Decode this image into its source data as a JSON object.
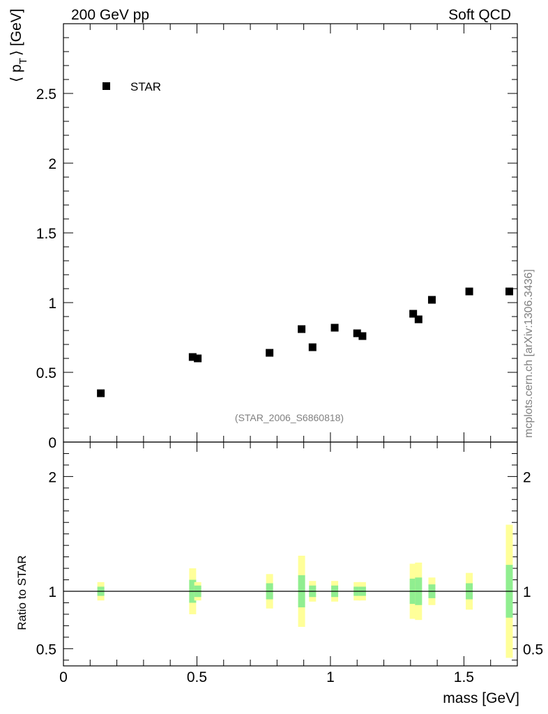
{
  "header": {
    "left": "200 GeV pp",
    "right": "Soft QCD"
  },
  "watermark": "mcplots.cern.ch [arXiv:1306.3436]",
  "analysis_id": "(STAR_2006_S6860818)",
  "colors": {
    "band_outer": "#ffff99",
    "band_inner": "#90ee90",
    "marker": "#000000",
    "axis": "#000000"
  },
  "chart_data": [
    {
      "type": "scatter",
      "name": "main",
      "ylabel_main": "⟨ p",
      "ylabel_sub": "T",
      "ylabel_unit": "⟩ [GeV]",
      "xlim": [
        0,
        1.7
      ],
      "ylim": [
        0,
        3.0
      ],
      "yticks": [
        0,
        0.5,
        1,
        1.5,
        2,
        2.5
      ],
      "ytick_labels": [
        "0",
        "0.5",
        "1",
        "1.5",
        "2",
        "2.5"
      ],
      "legend": {
        "label": "STAR",
        "position": "top-left"
      },
      "series": [
        {
          "name": "STAR",
          "x": [
            0.14,
            0.484,
            0.503,
            0.772,
            0.892,
            0.933,
            1.016,
            1.1,
            1.12,
            1.31,
            1.33,
            1.38,
            1.52,
            1.67
          ],
          "y": [
            0.35,
            0.61,
            0.6,
            0.64,
            0.81,
            0.68,
            0.82,
            0.78,
            0.76,
            0.92,
            0.88,
            1.02,
            1.08,
            1.08
          ]
        }
      ]
    },
    {
      "type": "bar",
      "name": "ratio",
      "ylabel": "Ratio to STAR",
      "xlabel": "mass [GeV]",
      "xlim": [
        0,
        1.7
      ],
      "ylim": [
        0.35,
        2.3
      ],
      "xticks": [
        0,
        0.5,
        1,
        1.5
      ],
      "xtick_labels": [
        "0",
        "0.5",
        "1",
        "1.5"
      ],
      "yticks": [
        0.5,
        1,
        2
      ],
      "ytick_labels": [
        "0.5",
        "1",
        "2"
      ],
      "reference_line": 1,
      "bands": [
        {
          "x": 0.14,
          "inner": [
            0.96,
            1.04
          ],
          "outer": [
            0.92,
            1.08
          ]
        },
        {
          "x": 0.484,
          "inner": [
            0.9,
            1.1
          ],
          "outer": [
            0.8,
            1.2
          ]
        },
        {
          "x": 0.503,
          "inner": [
            0.95,
            1.05
          ],
          "outer": [
            0.92,
            1.08
          ]
        },
        {
          "x": 0.772,
          "inner": [
            0.93,
            1.07
          ],
          "outer": [
            0.85,
            1.15
          ]
        },
        {
          "x": 0.892,
          "inner": [
            0.86,
            1.14
          ],
          "outer": [
            0.69,
            1.31
          ]
        },
        {
          "x": 0.933,
          "inner": [
            0.95,
            1.05
          ],
          "outer": [
            0.91,
            1.09
          ]
        },
        {
          "x": 1.016,
          "inner": [
            0.95,
            1.05
          ],
          "outer": [
            0.91,
            1.09
          ]
        },
        {
          "x": 1.1,
          "inner": [
            0.96,
            1.04
          ],
          "outer": [
            0.92,
            1.08
          ]
        },
        {
          "x": 1.12,
          "inner": [
            0.96,
            1.04
          ],
          "outer": [
            0.92,
            1.08
          ]
        },
        {
          "x": 1.31,
          "inner": [
            0.89,
            1.11
          ],
          "outer": [
            0.76,
            1.24
          ]
        },
        {
          "x": 1.33,
          "inner": [
            0.88,
            1.12
          ],
          "outer": [
            0.75,
            1.25
          ]
        },
        {
          "x": 1.38,
          "inner": [
            0.94,
            1.06
          ],
          "outer": [
            0.88,
            1.12
          ]
        },
        {
          "x": 1.52,
          "inner": [
            0.93,
            1.07
          ],
          "outer": [
            0.84,
            1.16
          ]
        },
        {
          "x": 1.67,
          "inner": [
            0.77,
            1.23
          ],
          "outer": [
            0.42,
            1.58
          ]
        }
      ]
    }
  ]
}
